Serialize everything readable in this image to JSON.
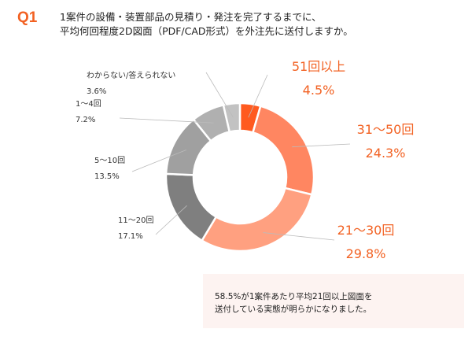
{
  "header": {
    "q_label": "Q1",
    "question_line1": "1案件の設備・装置部品の見積り・発注を完了するまでに、",
    "question_line2": "平均何回程度2D図面（PDF/CAD形式）を外注先に送付しますか。"
  },
  "chart_data": {
    "type": "pie",
    "donut": true,
    "categories": [
      "51回以上",
      "31～50回",
      "21～30回",
      "11～20回",
      "5～10回",
      "1～4回",
      "わからない/答えられない"
    ],
    "values": [
      4.5,
      24.3,
      29.8,
      17.1,
      13.5,
      7.2,
      3.6
    ],
    "value_labels": [
      "4.5%",
      "24.3%",
      "29.8%",
      "17.1%",
      "13.5%",
      "7.2%",
      "3.6%"
    ],
    "colors": [
      "#FF5A1F",
      "#FF8661",
      "#FFA080",
      "#7F7F7F",
      "#A0A0A0",
      "#B0B0B0",
      "#C2C2C2"
    ],
    "start": "top",
    "direction": "clockwise"
  },
  "callout": {
    "line1": "58.5%が1案件あたり平均21回以上図面を",
    "line2": "送付している実態が明らかになりました。"
  }
}
